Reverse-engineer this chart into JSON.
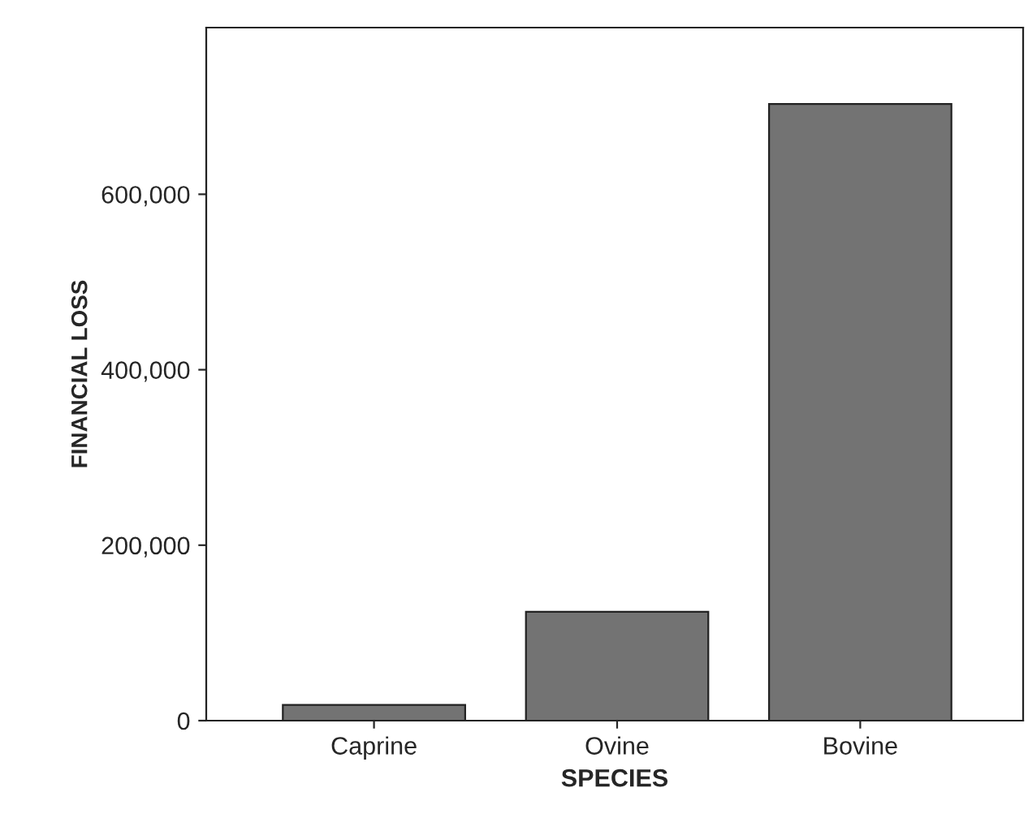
{
  "chart_data": {
    "type": "bar",
    "xlabel": "SPECIES",
    "ylabel": "FINANCIAL LOSS",
    "categories": [
      "Caprine",
      "Ovine",
      "Bovine"
    ],
    "values": [
      18000,
      124000,
      703000
    ],
    "color": "#737373",
    "ylim": [
      0,
      790000
    ],
    "yticks": [
      {
        "value": 0,
        "label": "0"
      },
      {
        "value": 200000,
        "label": "200,000"
      },
      {
        "value": 400000,
        "label": "400,000"
      },
      {
        "value": 600000,
        "label": "600,000"
      }
    ],
    "grid": false
  }
}
